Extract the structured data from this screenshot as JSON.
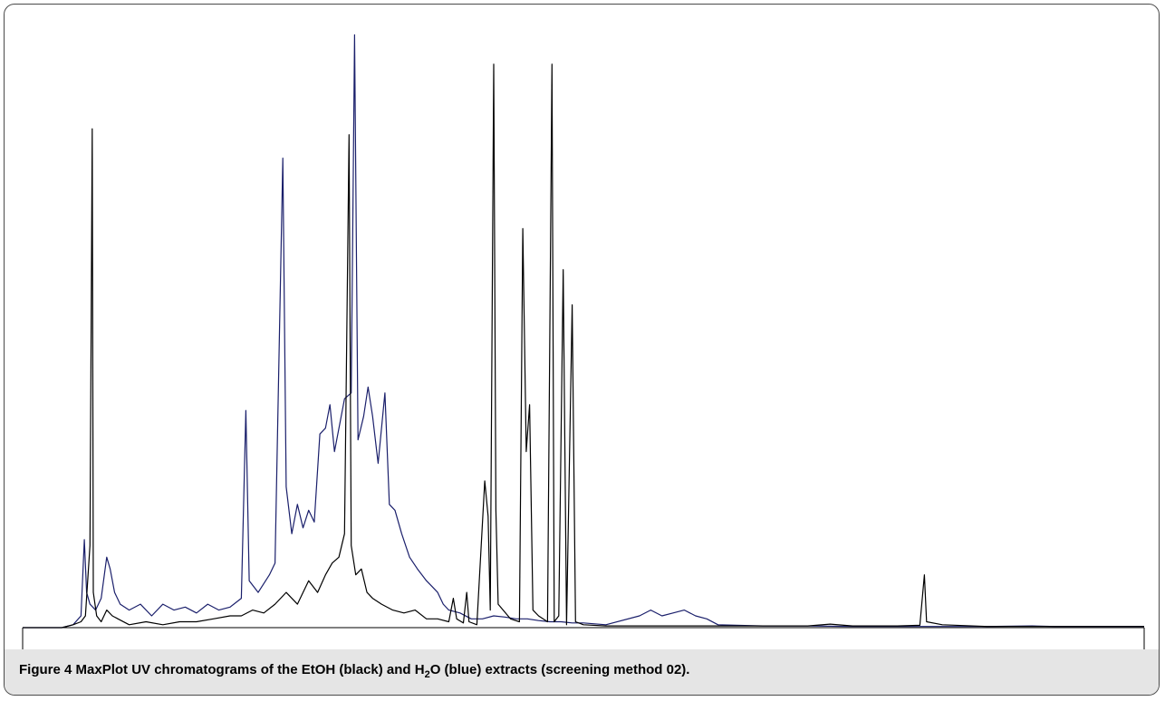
{
  "figure": {
    "label": "Figure 4",
    "caption_part1": " MaxPlot UV chromatograms of the EtOH (black) and H",
    "caption_sub": "2",
    "caption_part2": "O (blue) extracts (screening method 02)."
  },
  "chart_data": {
    "type": "line",
    "title": "",
    "xlabel": "",
    "ylabel": "",
    "xlim": [
      0,
      100
    ],
    "ylim": [
      0,
      100
    ],
    "grid": false,
    "series": [
      {
        "name": "EtOH",
        "color": "#000000",
        "points": [
          [
            0,
            0
          ],
          [
            3.5,
            0
          ],
          [
            4.5,
            0.5
          ],
          [
            5.2,
            1
          ],
          [
            5.6,
            2
          ],
          [
            6.0,
            14
          ],
          [
            6.2,
            85
          ],
          [
            6.3,
            6
          ],
          [
            6.6,
            2
          ],
          [
            7.0,
            1
          ],
          [
            7.5,
            3
          ],
          [
            8.0,
            2
          ],
          [
            8.5,
            1.5
          ],
          [
            9.5,
            0.5
          ],
          [
            11,
            1
          ],
          [
            12.5,
            0.5
          ],
          [
            14,
            1
          ],
          [
            15.5,
            1
          ],
          [
            17,
            1.5
          ],
          [
            18.5,
            2
          ],
          [
            19.5,
            2
          ],
          [
            20.5,
            3
          ],
          [
            21.5,
            2.5
          ],
          [
            22.5,
            4
          ],
          [
            23.5,
            6
          ],
          [
            24.5,
            4
          ],
          [
            25.5,
            8
          ],
          [
            26.3,
            6
          ],
          [
            27.0,
            9
          ],
          [
            27.6,
            11
          ],
          [
            28.2,
            12
          ],
          [
            28.7,
            16
          ],
          [
            29.1,
            84
          ],
          [
            29.3,
            14
          ],
          [
            29.7,
            9
          ],
          [
            30.2,
            10
          ],
          [
            30.7,
            6
          ],
          [
            31.2,
            5
          ],
          [
            32.0,
            4
          ],
          [
            33.0,
            3
          ],
          [
            34.0,
            2.5
          ],
          [
            35.0,
            3
          ],
          [
            36.0,
            1.5
          ],
          [
            37.0,
            1.5
          ],
          [
            38.0,
            1
          ],
          [
            38.4,
            5
          ],
          [
            38.7,
            1.5
          ],
          [
            39.3,
            0.8
          ],
          [
            39.6,
            6
          ],
          [
            39.8,
            1
          ],
          [
            40.5,
            0.5
          ],
          [
            41.2,
            25
          ],
          [
            41.5,
            19
          ],
          [
            41.7,
            3
          ],
          [
            42.0,
            96
          ],
          [
            42.2,
            20
          ],
          [
            42.4,
            4
          ],
          [
            43.5,
            1.5
          ],
          [
            44.3,
            1
          ],
          [
            44.6,
            68
          ],
          [
            44.9,
            30
          ],
          [
            45.2,
            38
          ],
          [
            45.5,
            3
          ],
          [
            46.0,
            2
          ],
          [
            46.8,
            1
          ],
          [
            47.2,
            96
          ],
          [
            47.4,
            1
          ],
          [
            47.8,
            2
          ],
          [
            48.2,
            61
          ],
          [
            48.5,
            0.5
          ],
          [
            49.0,
            55
          ],
          [
            49.3,
            1
          ],
          [
            50,
            0.5
          ],
          [
            52,
            0.3
          ],
          [
            56,
            0.3
          ],
          [
            60,
            0.3
          ],
          [
            66,
            0.3
          ],
          [
            70,
            0.3
          ],
          [
            72,
            0.6
          ],
          [
            74,
            0.3
          ],
          [
            78,
            0.3
          ],
          [
            80,
            0.4
          ],
          [
            80.4,
            9
          ],
          [
            80.6,
            1
          ],
          [
            82,
            0.5
          ],
          [
            86,
            0.2
          ],
          [
            92,
            0.2
          ],
          [
            96,
            0.2
          ],
          [
            100,
            0.2
          ]
        ]
      },
      {
        "name": "H2O",
        "color": "#1a1f6b",
        "points": [
          [
            0,
            0
          ],
          [
            3.5,
            0
          ],
          [
            4.5,
            0.5
          ],
          [
            5.2,
            2
          ],
          [
            5.5,
            15
          ],
          [
            5.7,
            6
          ],
          [
            6.0,
            4
          ],
          [
            6.5,
            3
          ],
          [
            7.0,
            5
          ],
          [
            7.5,
            12
          ],
          [
            7.8,
            10
          ],
          [
            8.2,
            6
          ],
          [
            8.7,
            4
          ],
          [
            9.5,
            3
          ],
          [
            10.5,
            4
          ],
          [
            11.5,
            2
          ],
          [
            12.5,
            4
          ],
          [
            13.5,
            3
          ],
          [
            14.5,
            3.5
          ],
          [
            15.5,
            2.5
          ],
          [
            16.5,
            4
          ],
          [
            17.5,
            3
          ],
          [
            18.5,
            3.5
          ],
          [
            19.5,
            5
          ],
          [
            19.9,
            37
          ],
          [
            20.2,
            8
          ],
          [
            21.0,
            6
          ],
          [
            22.0,
            9
          ],
          [
            22.5,
            11
          ],
          [
            23.2,
            80
          ],
          [
            23.5,
            24
          ],
          [
            24.0,
            16
          ],
          [
            24.5,
            21
          ],
          [
            25.0,
            17
          ],
          [
            25.5,
            20
          ],
          [
            26.0,
            18
          ],
          [
            26.5,
            33
          ],
          [
            27.0,
            34
          ],
          [
            27.4,
            38
          ],
          [
            27.8,
            30
          ],
          [
            28.3,
            35
          ],
          [
            28.7,
            39
          ],
          [
            29.3,
            40
          ],
          [
            29.6,
            101
          ],
          [
            29.9,
            32
          ],
          [
            30.4,
            36
          ],
          [
            30.8,
            41
          ],
          [
            31.2,
            36
          ],
          [
            31.7,
            28
          ],
          [
            32.3,
            40
          ],
          [
            32.7,
            21
          ],
          [
            33.2,
            20
          ],
          [
            33.8,
            16
          ],
          [
            34.5,
            12
          ],
          [
            35.2,
            10
          ],
          [
            36.0,
            8
          ],
          [
            36.5,
            7
          ],
          [
            37.0,
            6
          ],
          [
            37.5,
            4
          ],
          [
            38.0,
            3
          ],
          [
            39.0,
            2.5
          ],
          [
            40.0,
            1.5
          ],
          [
            41.0,
            1.5
          ],
          [
            42.0,
            2
          ],
          [
            43.0,
            1.8
          ],
          [
            44.0,
            1.5
          ],
          [
            45.0,
            1.5
          ],
          [
            46.0,
            1.2
          ],
          [
            47.0,
            1
          ],
          [
            48.0,
            1
          ],
          [
            49.0,
            0.8
          ],
          [
            50,
            0.8
          ],
          [
            52,
            0.5
          ],
          [
            55,
            2
          ],
          [
            56,
            3
          ],
          [
            57,
            2
          ],
          [
            58,
            2.5
          ],
          [
            59,
            3
          ],
          [
            60,
            2
          ],
          [
            61,
            1.5
          ],
          [
            62,
            0.5
          ],
          [
            66,
            0.3
          ],
          [
            70,
            0.3
          ],
          [
            74,
            0.2
          ],
          [
            78,
            0.2
          ],
          [
            82,
            0.2
          ],
          [
            86,
            0.2
          ],
          [
            90,
            0.3
          ],
          [
            92,
            0.2
          ],
          [
            96,
            0.2
          ],
          [
            100,
            0.2
          ]
        ]
      }
    ]
  }
}
